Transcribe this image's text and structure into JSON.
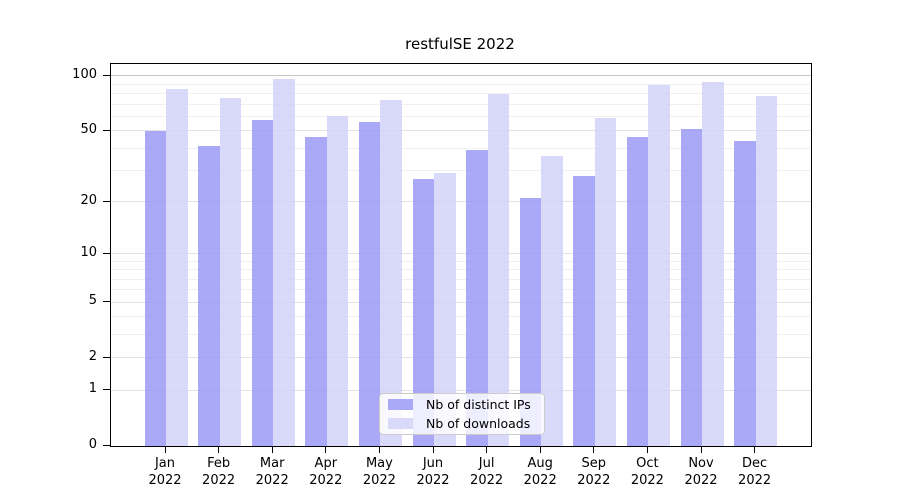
{
  "title": "restfulSE 2022",
  "chart_data": {
    "type": "bar",
    "title": "restfulSE 2022",
    "year": "2022",
    "months": [
      "Jan",
      "Feb",
      "Mar",
      "Apr",
      "May",
      "Jun",
      "Jul",
      "Aug",
      "Sep",
      "Oct",
      "Nov",
      "Dec"
    ],
    "categories": [
      "Jan 2022",
      "Feb 2022",
      "Mar 2022",
      "Apr 2022",
      "May 2022",
      "Jun 2022",
      "Jul 2022",
      "Aug 2022",
      "Sep 2022",
      "Oct 2022",
      "Nov 2022",
      "Dec 2022"
    ],
    "series": [
      {
        "name": "Nb of distinct IPs",
        "values": [
          50,
          41,
          57,
          46,
          56,
          27,
          39,
          21,
          28,
          46,
          51,
          44
        ],
        "fill_color": "#9393f6",
        "fill_opacity": 0.8,
        "legend_color": "#a9a9f8"
      },
      {
        "name": "Nb of downloads",
        "values": [
          85,
          76,
          96,
          60,
          74,
          29,
          80,
          36,
          59,
          89,
          93,
          78
        ],
        "fill_color": "#cfcff8",
        "fill_opacity": 0.8,
        "legend_color": "#d9d9f9"
      }
    ],
    "xlabel": "",
    "ylabel": "",
    "yscale": "log1p",
    "ylim": [
      0,
      116
    ],
    "y_major_ticks": [
      0,
      1,
      2,
      5,
      10,
      20,
      50,
      100
    ],
    "y_minor_gridlines": [
      3,
      4,
      6,
      7,
      8,
      9,
      30,
      40,
      60,
      70,
      80,
      90
    ],
    "emphasized_gridline": 100,
    "grid": true,
    "legend_position": "lower center"
  },
  "legend": {
    "items": [
      {
        "label": "Nb of distinct IPs"
      },
      {
        "label": "Nb of downloads"
      }
    ]
  },
  "style": {
    "major_gridline_color": "#e3e3e3",
    "minor_gridline_color": "#f0f0f0",
    "emphasized_gridline_color": "#c5c5c5",
    "axis_color": "#000000"
  }
}
